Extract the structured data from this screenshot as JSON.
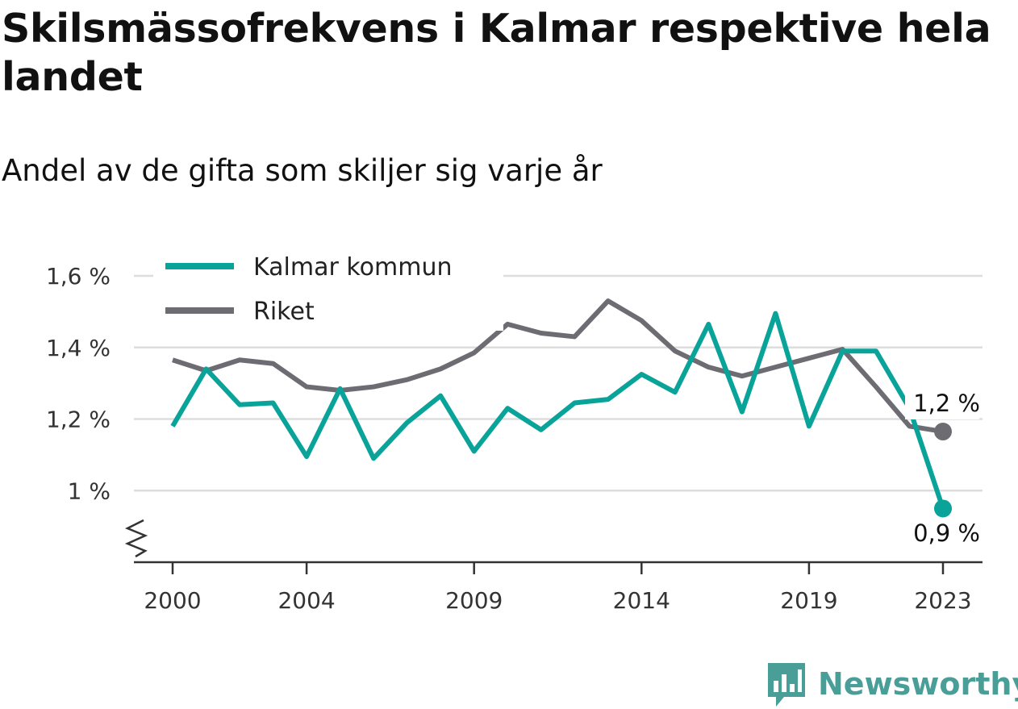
{
  "title": "Skilsmässofrekvens i Kalmar respektive hela landet",
  "subtitle": "Andel av de gifta som skiljer sig varje år",
  "brand": {
    "name": "Newsworthy",
    "icon": "chart-bubble-icon",
    "color": "#4a9e98"
  },
  "chart_data": {
    "type": "line",
    "x": [
      2000,
      2001,
      2002,
      2003,
      2004,
      2005,
      2006,
      2007,
      2008,
      2009,
      2010,
      2011,
      2012,
      2013,
      2014,
      2015,
      2016,
      2017,
      2018,
      2019,
      2020,
      2021,
      2022,
      2023
    ],
    "series": [
      {
        "name": "Kalmar kommun",
        "color": "#0aa39a",
        "values": [
          1.18,
          1.34,
          1.24,
          1.245,
          1.095,
          1.285,
          1.09,
          1.19,
          1.265,
          1.11,
          1.23,
          1.17,
          1.245,
          1.255,
          1.325,
          1.275,
          1.465,
          1.22,
          1.495,
          1.18,
          1.39,
          1.39,
          1.23,
          0.95
        ]
      },
      {
        "name": "Riket",
        "color": "#6d6c73",
        "values": [
          1.365,
          1.335,
          1.365,
          1.355,
          1.29,
          1.28,
          1.29,
          1.31,
          1.34,
          1.385,
          1.465,
          1.44,
          1.43,
          1.53,
          1.475,
          1.39,
          1.345,
          1.32,
          1.345,
          1.37,
          1.395,
          1.29,
          1.18,
          1.165
        ]
      }
    ],
    "x_ticks": [
      2000,
      2004,
      2009,
      2014,
      2019,
      2023
    ],
    "x_tick_labels": [
      "2000",
      "2004",
      "2009",
      "2014",
      "2019",
      "2023"
    ],
    "y_ticks": [
      1.0,
      1.2,
      1.4,
      1.6
    ],
    "y_tick_labels": [
      "1 %",
      "1,2 %",
      "1,4 %",
      "1,6 %"
    ],
    "ylim": [
      0.8,
      1.6
    ],
    "xlim": [
      2000,
      2023
    ],
    "y_axis_break": true,
    "grid": true,
    "legend": "top-left",
    "end_labels": [
      {
        "series": "Riket",
        "text": "1,2 %"
      },
      {
        "series": "Kalmar kommun",
        "text": "0,9 %"
      }
    ]
  }
}
